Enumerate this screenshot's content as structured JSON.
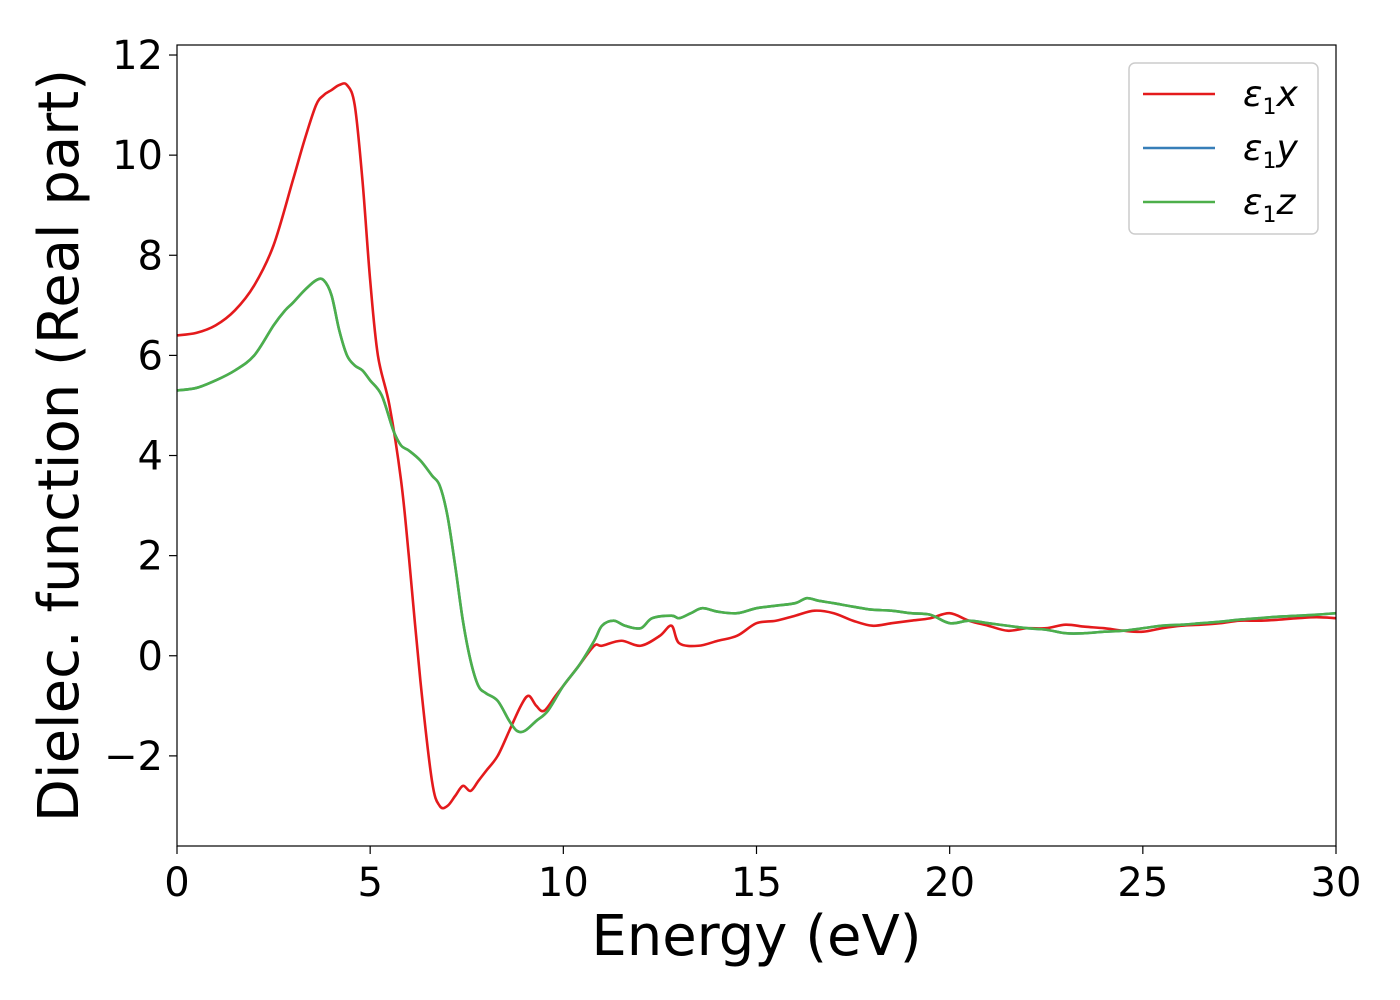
{
  "chart_data": {
    "type": "line",
    "xlabel": "Energy (eV)",
    "ylabel": "Dielec. function (Real part)",
    "xlim": [
      0,
      30
    ],
    "ylim": [
      -3.8,
      12.2
    ],
    "xticks": [
      0,
      5,
      10,
      15,
      20,
      25,
      30
    ],
    "yticks": [
      -2,
      0,
      2,
      4,
      6,
      8,
      10,
      12
    ],
    "xtick_labels": [
      "0",
      "5",
      "10",
      "15",
      "20",
      "25",
      "30"
    ],
    "ytick_labels": [
      "−2",
      "0",
      "2",
      "4",
      "6",
      "8",
      "10",
      "12"
    ],
    "grid": false,
    "legend_position": "top-right",
    "series": [
      {
        "name": "ε1x",
        "legend": {
          "greek": "ε",
          "sub": "1",
          "var": "x"
        },
        "color": "#e41a1c",
        "x": [
          0,
          0.5,
          1,
          1.5,
          2,
          2.5,
          3,
          3.3,
          3.6,
          3.8,
          4.0,
          4.2,
          4.4,
          4.6,
          4.8,
          5.0,
          5.2,
          5.5,
          5.8,
          6.0,
          6.3,
          6.6,
          6.8,
          7.0,
          7.2,
          7.4,
          7.6,
          7.8,
          8.0,
          8.3,
          8.6,
          8.9,
          9.1,
          9.3,
          9.5,
          9.8,
          10.0,
          10.4,
          10.8,
          11.0,
          11.5,
          12.0,
          12.5,
          12.8,
          13.0,
          13.5,
          14.0,
          14.5,
          15.0,
          15.5,
          16.0,
          16.5,
          17.0,
          17.5,
          18.0,
          18.5,
          19.0,
          19.5,
          20.0,
          20.5,
          21.0,
          21.5,
          22.0,
          22.5,
          23.0,
          23.5,
          24.0,
          24.5,
          25.0,
          25.5,
          26.0,
          26.5,
          27.0,
          27.5,
          28.0,
          28.5,
          29.0,
          29.5,
          30.0
        ],
        "y": [
          6.4,
          6.45,
          6.6,
          6.9,
          7.4,
          8.2,
          9.5,
          10.3,
          11.0,
          11.2,
          11.3,
          11.4,
          11.4,
          11.0,
          9.5,
          7.5,
          6.0,
          5.0,
          3.5,
          2.0,
          -0.5,
          -2.5,
          -3.0,
          -3.0,
          -2.8,
          -2.6,
          -2.7,
          -2.5,
          -2.3,
          -2.0,
          -1.5,
          -1.0,
          -0.8,
          -1.0,
          -1.1,
          -0.8,
          -0.6,
          -0.2,
          0.2,
          0.2,
          0.3,
          0.2,
          0.4,
          0.6,
          0.25,
          0.2,
          0.3,
          0.4,
          0.65,
          0.7,
          0.8,
          0.9,
          0.85,
          0.7,
          0.6,
          0.65,
          0.7,
          0.75,
          0.85,
          0.7,
          0.6,
          0.5,
          0.55,
          0.55,
          0.62,
          0.58,
          0.55,
          0.5,
          0.48,
          0.55,
          0.6,
          0.62,
          0.65,
          0.7,
          0.7,
          0.72,
          0.75,
          0.77,
          0.75
        ]
      },
      {
        "name": "ε1y",
        "legend": {
          "greek": "ε",
          "sub": "1",
          "var": "y"
        },
        "color": "#377eb8",
        "x": [
          0,
          0.5,
          1,
          1.5,
          2,
          2.5,
          2.8,
          3.0,
          3.3,
          3.6,
          3.8,
          4.0,
          4.2,
          4.4,
          4.6,
          4.8,
          5.0,
          5.3,
          5.6,
          5.8,
          6.0,
          6.3,
          6.6,
          6.8,
          7.0,
          7.2,
          7.4,
          7.6,
          7.8,
          8.0,
          8.3,
          8.6,
          8.8,
          9.0,
          9.3,
          9.6,
          10.0,
          10.4,
          10.8,
          11.0,
          11.3,
          11.6,
          12.0,
          12.3,
          12.8,
          13.0,
          13.3,
          13.6,
          14.0,
          14.5,
          15.0,
          15.5,
          16.0,
          16.3,
          16.6,
          17.0,
          17.5,
          18.0,
          18.5,
          19.0,
          19.5,
          20.0,
          20.5,
          21.0,
          21.5,
          22.0,
          22.5,
          23.0,
          23.5,
          24.0,
          24.5,
          25.0,
          25.5,
          26.0,
          26.5,
          27.0,
          27.5,
          28.0,
          28.5,
          29.0,
          29.5,
          30.0
        ],
        "y": [
          5.3,
          5.35,
          5.5,
          5.7,
          6.0,
          6.6,
          6.9,
          7.05,
          7.3,
          7.5,
          7.5,
          7.2,
          6.5,
          6.0,
          5.8,
          5.7,
          5.5,
          5.2,
          4.5,
          4.2,
          4.1,
          3.9,
          3.6,
          3.4,
          2.8,
          1.8,
          0.7,
          -0.1,
          -0.6,
          -0.75,
          -0.9,
          -1.3,
          -1.5,
          -1.5,
          -1.3,
          -1.1,
          -0.6,
          -0.2,
          0.3,
          0.6,
          0.7,
          0.6,
          0.55,
          0.75,
          0.8,
          0.75,
          0.85,
          0.95,
          0.88,
          0.85,
          0.95,
          1.0,
          1.05,
          1.15,
          1.1,
          1.05,
          0.98,
          0.92,
          0.9,
          0.85,
          0.82,
          0.65,
          0.7,
          0.65,
          0.6,
          0.55,
          0.52,
          0.45,
          0.45,
          0.48,
          0.5,
          0.55,
          0.6,
          0.62,
          0.65,
          0.68,
          0.72,
          0.75,
          0.78,
          0.8,
          0.82,
          0.85
        ]
      },
      {
        "name": "ε1z",
        "legend": {
          "greek": "ε",
          "sub": "1",
          "var": "z"
        },
        "color": "#4daf4a",
        "x": [
          0,
          0.5,
          1,
          1.5,
          2,
          2.5,
          2.8,
          3.0,
          3.3,
          3.6,
          3.8,
          4.0,
          4.2,
          4.4,
          4.6,
          4.8,
          5.0,
          5.3,
          5.6,
          5.8,
          6.0,
          6.3,
          6.6,
          6.8,
          7.0,
          7.2,
          7.4,
          7.6,
          7.8,
          8.0,
          8.3,
          8.6,
          8.8,
          9.0,
          9.3,
          9.6,
          10.0,
          10.4,
          10.8,
          11.0,
          11.3,
          11.6,
          12.0,
          12.3,
          12.8,
          13.0,
          13.3,
          13.6,
          14.0,
          14.5,
          15.0,
          15.5,
          16.0,
          16.3,
          16.6,
          17.0,
          17.5,
          18.0,
          18.5,
          19.0,
          19.5,
          20.0,
          20.5,
          21.0,
          21.5,
          22.0,
          22.5,
          23.0,
          23.5,
          24.0,
          24.5,
          25.0,
          25.5,
          26.0,
          26.5,
          27.0,
          27.5,
          28.0,
          28.5,
          29.0,
          29.5,
          30.0
        ],
        "y": [
          5.3,
          5.35,
          5.5,
          5.7,
          6.0,
          6.6,
          6.9,
          7.05,
          7.3,
          7.5,
          7.5,
          7.2,
          6.5,
          6.0,
          5.8,
          5.7,
          5.5,
          5.2,
          4.5,
          4.2,
          4.1,
          3.9,
          3.6,
          3.4,
          2.8,
          1.8,
          0.7,
          -0.1,
          -0.6,
          -0.75,
          -0.9,
          -1.3,
          -1.5,
          -1.5,
          -1.3,
          -1.1,
          -0.6,
          -0.2,
          0.3,
          0.6,
          0.7,
          0.6,
          0.55,
          0.75,
          0.8,
          0.75,
          0.85,
          0.95,
          0.88,
          0.85,
          0.95,
          1.0,
          1.05,
          1.15,
          1.1,
          1.05,
          0.98,
          0.92,
          0.9,
          0.85,
          0.82,
          0.65,
          0.7,
          0.65,
          0.6,
          0.55,
          0.52,
          0.45,
          0.45,
          0.48,
          0.5,
          0.55,
          0.6,
          0.62,
          0.65,
          0.68,
          0.72,
          0.75,
          0.78,
          0.8,
          0.82,
          0.85
        ]
      }
    ]
  }
}
